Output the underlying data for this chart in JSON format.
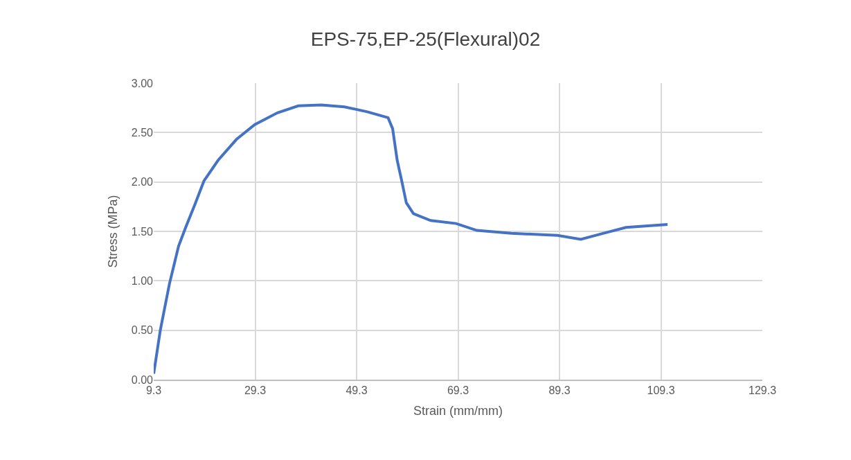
{
  "chart_data": {
    "type": "line",
    "title": "EPS-75,EP-25(Flexural)02",
    "xlabel": "Strain (mm/mm)",
    "ylabel": "Stress (MPa)",
    "x": [
      9.3,
      10.6,
      12.4,
      14.2,
      15.6,
      17.4,
      19.2,
      22.0,
      25.6,
      29.2,
      33.7,
      37.8,
      42.3,
      46.9,
      51.4,
      55.5,
      56.4,
      57.3,
      58.2,
      59.1,
      60.5,
      63.9,
      68.9,
      73.0,
      79.8,
      88.9,
      93.5,
      97.9,
      102.4,
      110.6
    ],
    "series": [
      {
        "color": "#4472c4",
        "values": [
          0.06,
          0.5,
          0.97,
          1.35,
          1.54,
          1.77,
          2.01,
          2.22,
          2.43,
          2.58,
          2.7,
          2.77,
          2.78,
          2.76,
          2.71,
          2.65,
          2.54,
          2.22,
          2.01,
          1.79,
          1.68,
          1.61,
          1.58,
          1.51,
          1.48,
          1.46,
          1.42,
          1.48,
          1.54,
          1.57
        ]
      }
    ],
    "xlim": [
      9.3,
      129.3
    ],
    "xticks": [
      {
        "value": 9.3,
        "label": "9.3"
      },
      {
        "value": 29.3,
        "label": "29.3"
      },
      {
        "value": 49.3,
        "label": "49.3"
      },
      {
        "value": 69.3,
        "label": "69.3"
      },
      {
        "value": 89.3,
        "label": "89.3"
      },
      {
        "value": 109.3,
        "label": "109.3"
      },
      {
        "value": 129.3,
        "label": "129.3"
      }
    ],
    "ylim": [
      0,
      3
    ],
    "yticks": [
      {
        "value": 0,
        "label": "0.00"
      },
      {
        "value": 0.5,
        "label": "0.50"
      },
      {
        "value": 1,
        "label": "1.00"
      },
      {
        "value": 1.5,
        "label": "1.50"
      },
      {
        "value": 2,
        "label": "2.00"
      },
      {
        "value": 2.5,
        "label": "2.50"
      },
      {
        "value": 3,
        "label": "3.00"
      }
    ],
    "grid": true,
    "marker": "none",
    "line_style": "solid"
  }
}
